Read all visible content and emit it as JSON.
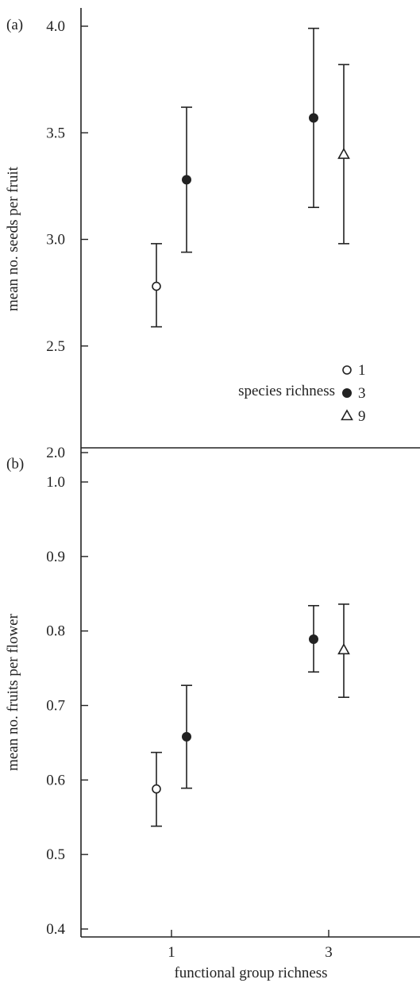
{
  "figure": {
    "xlabel": "functional group richness",
    "x_categories": [
      "1",
      "3"
    ]
  },
  "legend": {
    "title": "species richness",
    "entries": [
      {
        "label": "1",
        "marker": "open-circle"
      },
      {
        "label": "3",
        "marker": "filled-circle"
      },
      {
        "label": "9",
        "marker": "open-triangle"
      }
    ]
  },
  "colors": {
    "ink": "#222222",
    "background": "#ffffff"
  },
  "chart_data": [
    {
      "type": "scatter",
      "panel_label": "(a)",
      "ylabel": "mean no. seeds per fruit",
      "ylim": [
        2.0,
        4.0
      ],
      "yticks": [
        "2.0",
        "2.5",
        "3.0",
        "3.5",
        "4.0"
      ],
      "x_categories": [
        "1",
        "3"
      ],
      "grid": false,
      "legend_position": "right",
      "series": [
        {
          "name": "1",
          "marker": "open-circle",
          "points": [
            {
              "x": "1",
              "y": 2.78,
              "lower": 2.59,
              "upper": 2.98
            }
          ]
        },
        {
          "name": "3",
          "marker": "filled-circle",
          "points": [
            {
              "x": "1",
              "y": 3.28,
              "lower": 2.94,
              "upper": 3.62
            },
            {
              "x": "3",
              "y": 3.57,
              "lower": 3.15,
              "upper": 3.99
            }
          ]
        },
        {
          "name": "9",
          "marker": "open-triangle",
          "points": [
            {
              "x": "3",
              "y": 3.4,
              "lower": 2.98,
              "upper": 3.82
            }
          ]
        }
      ]
    },
    {
      "type": "scatter",
      "panel_label": "(b)",
      "ylabel": "mean no. fruits per flower",
      "xlabel": "functional group richness",
      "ylim": [
        0.4,
        1.0
      ],
      "yticks": [
        "0.4",
        "0.5",
        "0.6",
        "0.7",
        "0.8",
        "0.9",
        "1.0"
      ],
      "x_categories": [
        "1",
        "3"
      ],
      "grid": false,
      "series": [
        {
          "name": "1",
          "marker": "open-circle",
          "points": [
            {
              "x": "1",
              "y": 0.588,
              "lower": 0.538,
              "upper": 0.637
            }
          ]
        },
        {
          "name": "3",
          "marker": "filled-circle",
          "points": [
            {
              "x": "1",
              "y": 0.658,
              "lower": 0.589,
              "upper": 0.727
            },
            {
              "x": "3",
              "y": 0.789,
              "lower": 0.745,
              "upper": 0.834
            }
          ]
        },
        {
          "name": "9",
          "marker": "open-triangle",
          "points": [
            {
              "x": "3",
              "y": 0.775,
              "lower": 0.711,
              "upper": 0.836
            }
          ]
        }
      ]
    }
  ]
}
